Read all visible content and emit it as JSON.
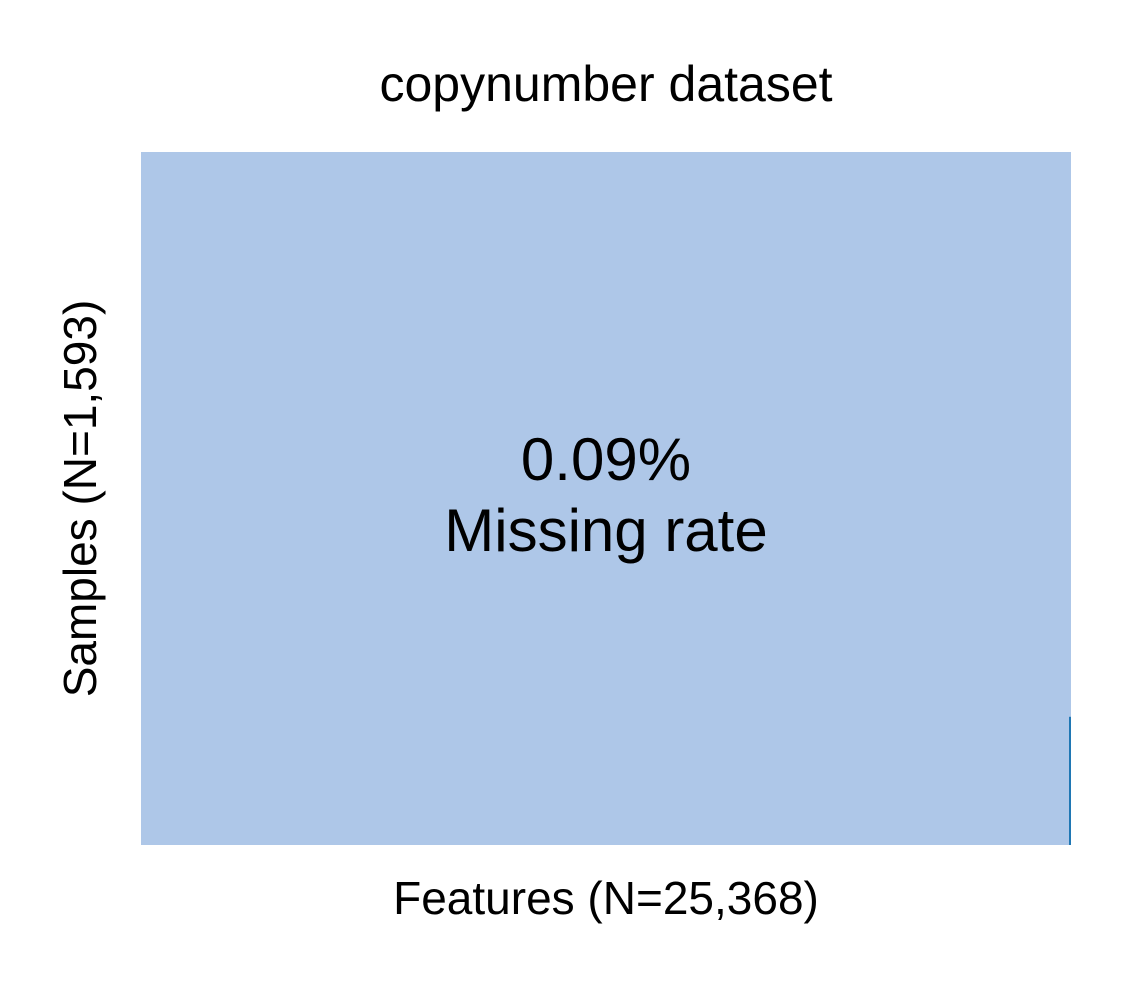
{
  "chart_data": {
    "type": "heatmap",
    "title": "copynumber dataset",
    "xlabel": "Features (N=25,368)",
    "ylabel": "Samples (N=1,593)",
    "annotation": {
      "value": "0.09%",
      "label": "Missing rate"
    },
    "n_features": 25368,
    "n_samples": 1593,
    "missing_rate": 0.0009,
    "colors": {
      "present": "#aec7e8",
      "missing": "#1f77b4"
    },
    "missing_block": {
      "feature_fraction_start": 0.998,
      "feature_fraction_end": 1.0,
      "sample_fraction_start": 0.815,
      "sample_fraction_end": 1.0
    }
  }
}
